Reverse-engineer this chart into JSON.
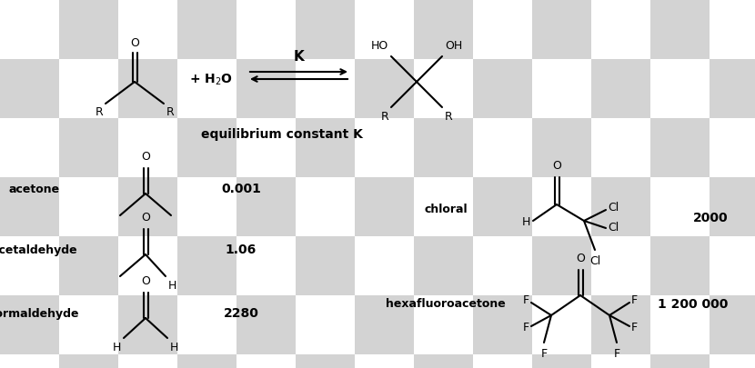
{
  "checker_colors": [
    "#ffffff",
    "#d3d3d3"
  ],
  "checker_size": 65,
  "labels": {
    "eq_label": "equilibrium constant K",
    "acetone": "acetone",
    "acetaldehyde": "acetaldehyde",
    "formaldehyde": "formaldehyde",
    "chloral": "chloral",
    "hexafluoroacetone": "hexafluoroacetone",
    "k_acetone": "0.001",
    "k_acetaldehyde": "1.06",
    "k_formaldehyde": "2280",
    "k_chloral": "2000",
    "k_hexafluoro": "1 200 000"
  }
}
